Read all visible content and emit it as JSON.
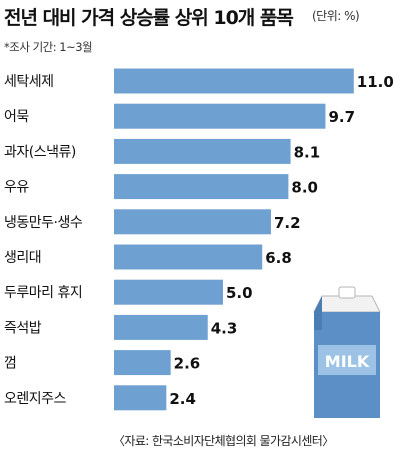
{
  "title": "전년 대비 가격 상승률 상위 10개 품목",
  "unit": "(단위: %)",
  "note": "*조사 기간: 1~3월",
  "source": "〈자료: 한국소비자단체협의회 물가감시센터〉",
  "colors": {
    "bar": "#6ea1d1",
    "milk_carton": "#5b8fc6",
    "milk_label": "#9cc3e6",
    "milk_cap": "#f2f2f2"
  },
  "illustration": {
    "icon": "milk-carton-icon",
    "text": "MILK"
  },
  "chart_data": {
    "type": "bar",
    "orientation": "horizontal",
    "title": "전년 대비 가격 상승률 상위 10개 품목",
    "categories": [
      "세탁세제",
      "어묵",
      "과자(스낵류)",
      "우유",
      "냉동만두·생수",
      "생리대",
      "두루마리 휴지",
      "즉석밥",
      "껌",
      "오렌지주스"
    ],
    "values": [
      11.0,
      9.7,
      8.1,
      8.0,
      7.2,
      6.8,
      5.0,
      4.3,
      2.6,
      2.4
    ],
    "value_labels": [
      "11.0",
      "9.7",
      "8.1",
      "8.0",
      "7.2",
      "6.8",
      "5.0",
      "4.3",
      "2.6",
      "2.4"
    ],
    "xlim": [
      0,
      11
    ],
    "grid": false,
    "legend": "none"
  }
}
